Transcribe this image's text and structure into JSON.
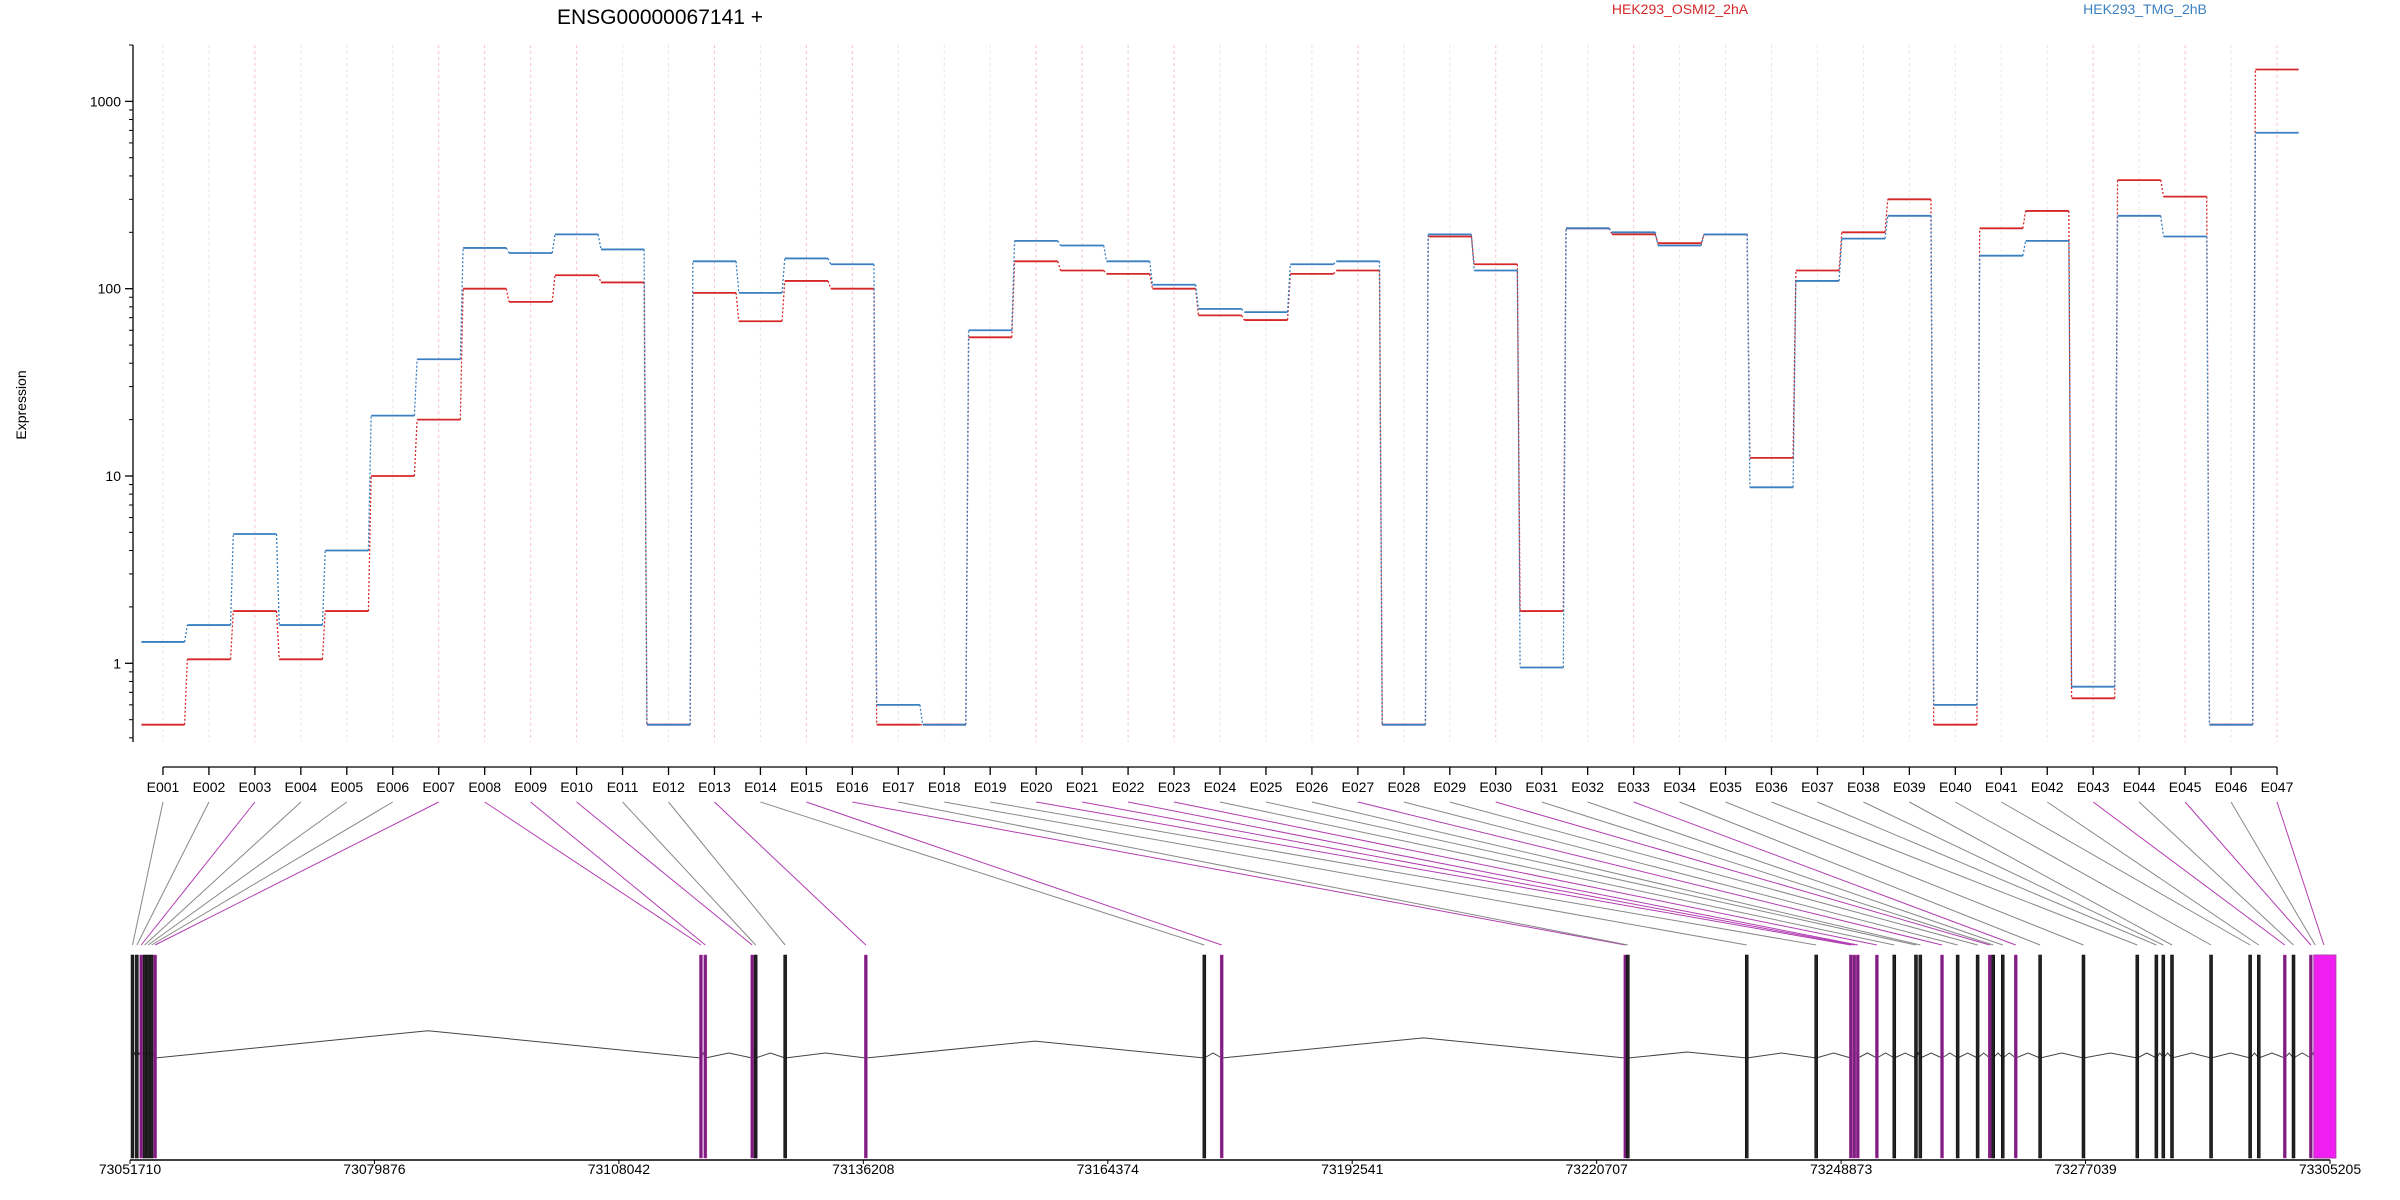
{
  "chart_data": {
    "type": "line",
    "title": "ENSG00000067141 +",
    "ylabel": "Expression",
    "xlabel": "",
    "yscale": "log",
    "ylim": [
      0.38,
      2000
    ],
    "yticks": [
      1,
      10,
      100,
      1000
    ],
    "ytick_labels": [
      "1",
      "10",
      "100",
      "1000"
    ],
    "grid": "vertical dashed per exon",
    "legend_placement": "top",
    "categories": [
      "E001",
      "E002",
      "E003",
      "E004",
      "E005",
      "E006",
      "E007",
      "E008",
      "E009",
      "E010",
      "E011",
      "E012",
      "E013",
      "E014",
      "E015",
      "E016",
      "E017",
      "E018",
      "E019",
      "E020",
      "E021",
      "E022",
      "E023",
      "E024",
      "E025",
      "E026",
      "E027",
      "E028",
      "E029",
      "E030",
      "E031",
      "E032",
      "E033",
      "E034",
      "E035",
      "E036",
      "E037",
      "E038",
      "E039",
      "E040",
      "E041",
      "E042",
      "E043",
      "E044",
      "E045",
      "E046",
      "E047"
    ],
    "series": [
      {
        "name": "HEK293_OSMI2_2hA",
        "color": "#d62728",
        "values": [
          0.47,
          1.05,
          1.9,
          1.05,
          1.9,
          10,
          20,
          100,
          85,
          118,
          108,
          0.47,
          95,
          67,
          110,
          100,
          0.47,
          0.47,
          55,
          140,
          125,
          120,
          100,
          72,
          68,
          120,
          125,
          0.47,
          190,
          135,
          1.9,
          210,
          195,
          175,
          195,
          12.5,
          125,
          200,
          300,
          0.47,
          210,
          260,
          0.65,
          380,
          310,
          0.47,
          1480
        ]
      },
      {
        "name": "HEK293_TMG_2hB",
        "color": "#3a7fc1",
        "values": [
          1.3,
          1.6,
          4.9,
          1.6,
          4.0,
          21,
          42,
          165,
          155,
          195,
          162,
          0.47,
          140,
          95,
          145,
          135,
          0.6,
          0.47,
          60,
          180,
          170,
          140,
          105,
          78,
          75,
          135,
          140,
          0.47,
          195,
          125,
          0.95,
          210,
          200,
          170,
          195,
          8.7,
          110,
          185,
          245,
          0.6,
          150,
          180,
          0.75,
          245,
          190,
          0.47,
          680
        ]
      }
    ],
    "exon_highlight": [
      "gray",
      "gray",
      "magenta",
      "gray",
      "gray",
      "gray",
      "magenta",
      "magenta",
      "magenta",
      "magenta",
      "gray",
      "gray",
      "magenta",
      "gray",
      "magenta",
      "magenta",
      "gray",
      "gray",
      "gray",
      "magenta",
      "magenta",
      "magenta",
      "magenta",
      "gray",
      "gray",
      "gray",
      "magenta",
      "gray",
      "gray",
      "magenta",
      "gray",
      "gray",
      "magenta",
      "gray",
      "gray",
      "gray",
      "gray",
      "gray",
      "gray",
      "gray",
      "gray",
      "gray",
      "magenta",
      "gray",
      "magenta",
      "gray",
      "magenta"
    ],
    "genomic_axis": {
      "range": [
        73051710,
        73305205
      ],
      "ticks": [
        73051710,
        73079876,
        73108042,
        73136208,
        73164374,
        73192541,
        73220707,
        73248873,
        73277039,
        73305205
      ],
      "tick_labels": [
        "73051710",
        "73079876",
        "73108042",
        "73136208",
        "73164374",
        "73192541",
        "73220707",
        "73248873",
        "73277039",
        "73305205"
      ]
    },
    "exon_positions": [
      73052000,
      73052500,
      73053000,
      73053400,
      73053800,
      73054200,
      73054600,
      73117500,
      73118000,
      73123400,
      73123800,
      73127200,
      73136500,
      73175500,
      73177500,
      73224000,
      73224300,
      73238000,
      73246000,
      73250000,
      73250400,
      73250800,
      73253000,
      73255000,
      73257500,
      73258000,
      73260500,
      73262300,
      73264600,
      73266000,
      73266400,
      73267500,
      73269000,
      73271800,
      73276800,
      73283000,
      73285200,
      73286000,
      73287000,
      73291500,
      73296000,
      73297000,
      73300000,
      73301000,
      73303000,
      73303500,
      73304500
    ]
  }
}
